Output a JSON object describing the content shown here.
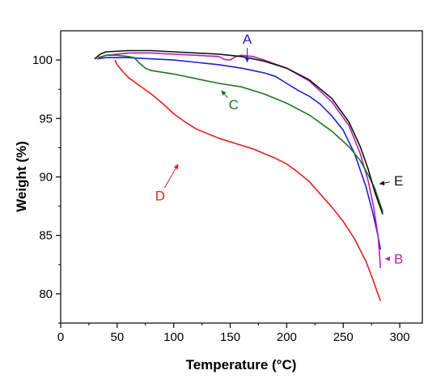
{
  "chart_data": {
    "type": "line",
    "xlabel": "Temperature (°C)",
    "ylabel": "Weight (%)",
    "xlim": [
      0,
      320
    ],
    "ylim": [
      77.5,
      102.5
    ],
    "xticks": [
      0,
      50,
      100,
      150,
      200,
      250,
      300
    ],
    "yticks": [
      80,
      85,
      90,
      95,
      100
    ],
    "grid": false,
    "series": [
      {
        "name": "A",
        "color": "#1f1fd2",
        "points": [
          [
            32,
            100.1
          ],
          [
            40,
            100.2
          ],
          [
            60,
            100.2
          ],
          [
            80,
            100.1
          ],
          [
            100,
            100.0
          ],
          [
            120,
            99.8
          ],
          [
            140,
            99.6
          ],
          [
            160,
            99.3
          ],
          [
            180,
            98.9
          ],
          [
            190,
            98.6
          ],
          [
            200,
            98.0
          ],
          [
            210,
            97.4
          ],
          [
            220,
            96.9
          ],
          [
            230,
            96.2
          ],
          [
            240,
            95.2
          ],
          [
            250,
            94.0
          ],
          [
            260,
            92.0
          ],
          [
            270,
            89.2
          ],
          [
            276,
            87.0
          ],
          [
            280,
            85.3
          ],
          [
            283,
            83.8
          ]
        ]
      },
      {
        "name": "B",
        "color": "#b51fb5",
        "points": [
          [
            32,
            100.1
          ],
          [
            40,
            100.4
          ],
          [
            60,
            100.6
          ],
          [
            80,
            100.6
          ],
          [
            100,
            100.5
          ],
          [
            120,
            100.4
          ],
          [
            140,
            100.3
          ],
          [
            145,
            100.05
          ],
          [
            150,
            100.0
          ],
          [
            155,
            100.3
          ],
          [
            160,
            100.4
          ],
          [
            170,
            100.3
          ],
          [
            180,
            100.0
          ],
          [
            200,
            99.3
          ],
          [
            220,
            98.2
          ],
          [
            240,
            96.4
          ],
          [
            255,
            94.4
          ],
          [
            265,
            92.0
          ],
          [
            272,
            89.7
          ],
          [
            277,
            87.4
          ],
          [
            281,
            84.8
          ],
          [
            283,
            82.2
          ]
        ]
      },
      {
        "name": "C",
        "color": "#1a7a1a",
        "points": [
          [
            33,
            100.2
          ],
          [
            40,
            100.4
          ],
          [
            50,
            100.4
          ],
          [
            60,
            100.3
          ],
          [
            65,
            100.2
          ],
          [
            70,
            99.7
          ],
          [
            75,
            99.3
          ],
          [
            80,
            99.1
          ],
          [
            100,
            98.8
          ],
          [
            120,
            98.4
          ],
          [
            140,
            98.0
          ],
          [
            160,
            97.7
          ],
          [
            180,
            97.1
          ],
          [
            200,
            96.3
          ],
          [
            220,
            95.3
          ],
          [
            240,
            93.9
          ],
          [
            255,
            92.6
          ],
          [
            265,
            91.4
          ],
          [
            272,
            90.2
          ],
          [
            278,
            89.0
          ],
          [
            283,
            87.6
          ],
          [
            285,
            87.0
          ]
        ]
      },
      {
        "name": "D",
        "color": "#e02020",
        "points": [
          [
            48,
            100.0
          ],
          [
            50,
            99.6
          ],
          [
            55,
            99.0
          ],
          [
            60,
            98.5
          ],
          [
            70,
            97.8
          ],
          [
            80,
            97.1
          ],
          [
            90,
            96.3
          ],
          [
            100,
            95.4
          ],
          [
            110,
            94.7
          ],
          [
            120,
            94.1
          ],
          [
            130,
            93.7
          ],
          [
            140,
            93.3
          ],
          [
            150,
            93.0
          ],
          [
            160,
            92.7
          ],
          [
            170,
            92.4
          ],
          [
            180,
            92.0
          ],
          [
            190,
            91.6
          ],
          [
            200,
            91.1
          ],
          [
            210,
            90.4
          ],
          [
            220,
            89.6
          ],
          [
            230,
            88.5
          ],
          [
            240,
            87.4
          ],
          [
            250,
            86.2
          ],
          [
            260,
            84.7
          ],
          [
            270,
            82.8
          ],
          [
            276,
            81.3
          ],
          [
            281,
            79.9
          ],
          [
            283,
            79.4
          ]
        ]
      },
      {
        "name": "E",
        "color": "#111111",
        "points": [
          [
            30,
            100.1
          ],
          [
            35,
            100.5
          ],
          [
            40,
            100.7
          ],
          [
            60,
            100.8
          ],
          [
            80,
            100.8
          ],
          [
            100,
            100.7
          ],
          [
            120,
            100.6
          ],
          [
            140,
            100.5
          ],
          [
            160,
            100.3
          ],
          [
            180,
            99.9
          ],
          [
            200,
            99.3
          ],
          [
            220,
            98.3
          ],
          [
            240,
            96.7
          ],
          [
            255,
            94.7
          ],
          [
            265,
            92.6
          ],
          [
            272,
            90.7
          ],
          [
            278,
            88.7
          ],
          [
            282,
            87.6
          ],
          [
            285,
            86.8
          ]
        ]
      }
    ],
    "annotations": [
      {
        "text": "A",
        "color": "#1f1fd2",
        "at": [
          165,
          101.8
        ],
        "arrow_to": [
          165,
          99.8
        ]
      },
      {
        "text": "B",
        "color": "#b51fb5",
        "at": [
          299,
          83.0
        ],
        "arrow_to": [
          287,
          83.0
        ]
      },
      {
        "text": "C",
        "color": "#1a7a1a",
        "at": [
          153,
          96.2
        ],
        "arrow_to": [
          142,
          97.4
        ]
      },
      {
        "text": "D",
        "color": "#e02020",
        "at": [
          88,
          88.4
        ],
        "arrow_to": [
          104,
          91.1
        ]
      },
      {
        "text": "E",
        "color": "#111111",
        "at": [
          299,
          89.7
        ],
        "arrow_to": [
          282,
          89.4
        ]
      }
    ]
  }
}
